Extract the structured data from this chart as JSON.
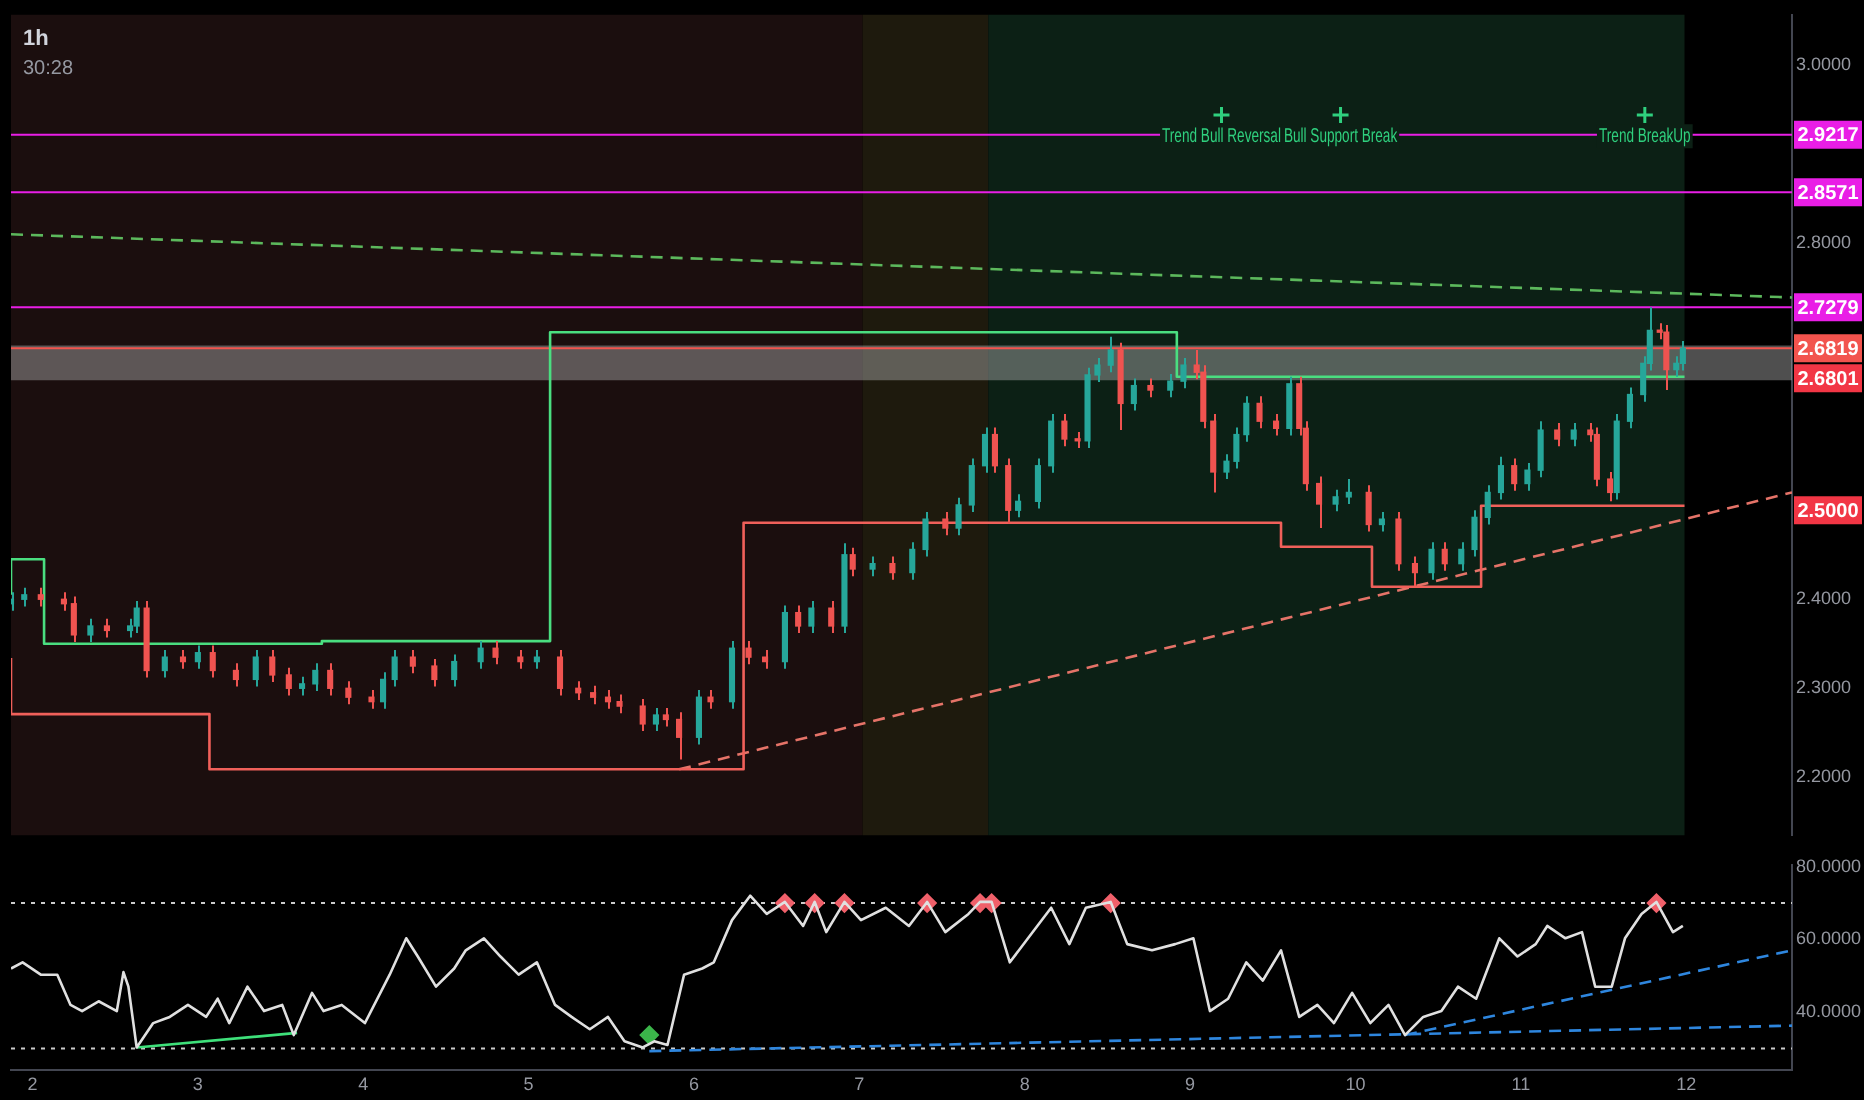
{
  "chart_data": [
    {
      "type": "candlestick",
      "title": "1h",
      "x": [
        1.87,
        1.95,
        2.05,
        2.19,
        2.25,
        2.35,
        2.45,
        2.59,
        2.63,
        2.69,
        2.8,
        2.91,
        3.0,
        3.09,
        3.23,
        3.35,
        3.45,
        3.55,
        3.63,
        3.71,
        3.8,
        3.91,
        4.05,
        4.12,
        4.19,
        4.3,
        4.43,
        4.55,
        4.71,
        4.8,
        4.95,
        5.05,
        5.19,
        5.3,
        5.39,
        5.48,
        5.55,
        5.69,
        5.77,
        5.83,
        5.91,
        6.03,
        6.1,
        6.23,
        6.33,
        6.43,
        6.55,
        6.63,
        6.71,
        6.83,
        6.91,
        6.96,
        7.08,
        7.2,
        7.32,
        7.4,
        7.52,
        7.6,
        7.68,
        7.76,
        7.82,
        7.9,
        7.96,
        8.08,
        8.16,
        8.24,
        8.32,
        8.38,
        8.44,
        8.52,
        8.58,
        8.66,
        8.76,
        8.88,
        8.96,
        9.04,
        9.08,
        9.14,
        9.22,
        9.28,
        9.34,
        9.42,
        9.52,
        9.6,
        9.66,
        9.7,
        9.78,
        9.88,
        9.96,
        10.08,
        10.16,
        10.26,
        10.36,
        10.46,
        10.54,
        10.64,
        10.72,
        10.8,
        10.88,
        10.96,
        11.04,
        11.12,
        11.22,
        11.32,
        11.42,
        11.46,
        11.54,
        11.58,
        11.66,
        11.74,
        11.78,
        11.84,
        11.88,
        11.94,
        11.98
      ],
      "ohlc": [
        [
          2.395,
          2.408,
          2.387,
          2.4
        ],
        [
          2.4,
          2.413,
          2.392,
          2.405
        ],
        [
          2.405,
          2.413,
          2.392,
          2.4
        ],
        [
          2.4,
          2.408,
          2.387,
          2.395
        ],
        [
          2.395,
          2.403,
          2.352,
          2.36
        ],
        [
          2.36,
          2.378,
          2.352,
          2.37
        ],
        [
          2.37,
          2.378,
          2.357,
          2.365
        ],
        [
          2.365,
          2.378,
          2.357,
          2.37
        ],
        [
          2.37,
          2.398,
          2.362,
          2.39
        ],
        [
          2.39,
          2.398,
          2.312,
          2.32
        ],
        [
          2.32,
          2.343,
          2.312,
          2.335
        ],
        [
          2.335,
          2.343,
          2.322,
          2.33
        ],
        [
          2.33,
          2.348,
          2.322,
          2.34
        ],
        [
          2.34,
          2.348,
          2.312,
          2.32
        ],
        [
          2.32,
          2.328,
          2.302,
          2.31
        ],
        [
          2.31,
          2.343,
          2.302,
          2.335
        ],
        [
          2.335,
          2.343,
          2.307,
          2.315
        ],
        [
          2.315,
          2.323,
          2.292,
          2.3
        ],
        [
          2.3,
          2.313,
          2.292,
          2.305
        ],
        [
          2.305,
          2.328,
          2.297,
          2.32
        ],
        [
          2.32,
          2.328,
          2.292,
          2.3
        ],
        [
          2.3,
          2.308,
          2.282,
          2.29
        ],
        [
          2.29,
          2.298,
          2.277,
          2.285
        ],
        [
          2.285,
          2.318,
          2.277,
          2.31
        ],
        [
          2.31,
          2.343,
          2.302,
          2.335
        ],
        [
          2.335,
          2.343,
          2.317,
          2.325
        ],
        [
          2.325,
          2.333,
          2.302,
          2.31
        ],
        [
          2.31,
          2.338,
          2.302,
          2.33
        ],
        [
          2.33,
          2.353,
          2.322,
          2.345
        ],
        [
          2.345,
          2.353,
          2.327,
          2.335
        ],
        [
          2.335,
          2.343,
          2.322,
          2.33
        ],
        [
          2.33,
          2.343,
          2.322,
          2.335
        ],
        [
          2.335,
          2.343,
          2.292,
          2.3
        ],
        [
          2.3,
          2.308,
          2.287,
          2.295
        ],
        [
          2.295,
          2.303,
          2.282,
          2.29
        ],
        [
          2.29,
          2.298,
          2.277,
          2.285
        ],
        [
          2.285,
          2.293,
          2.272,
          2.28
        ],
        [
          2.28,
          2.288,
          2.252,
          2.26
        ],
        [
          2.26,
          2.278,
          2.252,
          2.27
        ],
        [
          2.27,
          2.278,
          2.257,
          2.265
        ],
        [
          2.265,
          2.273,
          2.22,
          2.245
        ],
        [
          2.245,
          2.298,
          2.237,
          2.29
        ],
        [
          2.29,
          2.298,
          2.277,
          2.285
        ],
        [
          2.285,
          2.353,
          2.277,
          2.345
        ],
        [
          2.345,
          2.353,
          2.327,
          2.335
        ],
        [
          2.335,
          2.343,
          2.322,
          2.33
        ],
        [
          2.33,
          2.393,
          2.322,
          2.385
        ],
        [
          2.385,
          2.393,
          2.362,
          2.37
        ],
        [
          2.37,
          2.398,
          2.362,
          2.39
        ],
        [
          2.39,
          2.398,
          2.362,
          2.37
        ],
        [
          2.37,
          2.463,
          2.362,
          2.45
        ],
        [
          2.45,
          2.458,
          2.426,
          2.434
        ],
        [
          2.434,
          2.448,
          2.426,
          2.44
        ],
        [
          2.44,
          2.448,
          2.422,
          2.43
        ],
        [
          2.43,
          2.464,
          2.422,
          2.456
        ],
        [
          2.456,
          2.498,
          2.448,
          2.49
        ],
        [
          2.49,
          2.498,
          2.472,
          2.48
        ],
        [
          2.48,
          2.514,
          2.472,
          2.506
        ],
        [
          2.506,
          2.558,
          2.498,
          2.55
        ],
        [
          2.55,
          2.593,
          2.542,
          2.585
        ],
        [
          2.585,
          2.593,
          2.542,
          2.55
        ],
        [
          2.55,
          2.558,
          2.485,
          2.5
        ],
        [
          2.5,
          2.518,
          2.492,
          2.51
        ],
        [
          2.51,
          2.558,
          2.502,
          2.55
        ],
        [
          2.55,
          2.608,
          2.542,
          2.6
        ],
        [
          2.6,
          2.608,
          2.572,
          2.58
        ],
        [
          2.58,
          2.588,
          2.57,
          2.578
        ],
        [
          2.578,
          2.66,
          2.57,
          2.652
        ],
        [
          2.652,
          2.671,
          2.644,
          2.663
        ],
        [
          2.663,
          2.695,
          2.655,
          2.68
        ],
        [
          2.68,
          2.688,
          2.59,
          2.62
        ],
        [
          2.62,
          2.648,
          2.612,
          2.64
        ],
        [
          2.64,
          2.648,
          2.627,
          2.635
        ],
        [
          2.635,
          2.653,
          2.627,
          2.645
        ],
        [
          2.645,
          2.671,
          2.637,
          2.663
        ],
        [
          2.663,
          2.68,
          2.647,
          2.655
        ],
        [
          2.655,
          2.663,
          2.592,
          2.6
        ],
        [
          2.6,
          2.608,
          2.52,
          2.543
        ],
        [
          2.543,
          2.563,
          2.535,
          2.555
        ],
        [
          2.555,
          2.593,
          2.547,
          2.585
        ],
        [
          2.585,
          2.628,
          2.577,
          2.62
        ],
        [
          2.62,
          2.628,
          2.592,
          2.6
        ],
        [
          2.6,
          2.608,
          2.584,
          2.592
        ],
        [
          2.592,
          2.65,
          2.584,
          2.642
        ],
        [
          2.642,
          2.65,
          2.584,
          2.592
        ],
        [
          2.592,
          2.6,
          2.522,
          2.53
        ],
        [
          2.53,
          2.538,
          2.48,
          2.507
        ],
        [
          2.507,
          2.523,
          2.499,
          2.515
        ],
        [
          2.515,
          2.535,
          2.507,
          2.52
        ],
        [
          2.52,
          2.528,
          2.476,
          2.484
        ],
        [
          2.484,
          2.498,
          2.476,
          2.49
        ],
        [
          2.49,
          2.498,
          2.432,
          2.44
        ],
        [
          2.44,
          2.448,
          2.415,
          2.43
        ],
        [
          2.43,
          2.464,
          2.422,
          2.456
        ],
        [
          2.456,
          2.464,
          2.432,
          2.44
        ],
        [
          2.44,
          2.464,
          2.432,
          2.456
        ],
        [
          2.456,
          2.5,
          2.448,
          2.492
        ],
        [
          2.492,
          2.528,
          2.484,
          2.52
        ],
        [
          2.52,
          2.56,
          2.512,
          2.55
        ],
        [
          2.55,
          2.558,
          2.522,
          2.53
        ],
        [
          2.53,
          2.553,
          2.522,
          2.545
        ],
        [
          2.545,
          2.6,
          2.537,
          2.59
        ],
        [
          2.59,
          2.598,
          2.572,
          2.58
        ],
        [
          2.58,
          2.598,
          2.572,
          2.59
        ],
        [
          2.59,
          2.598,
          2.577,
          2.585
        ],
        [
          2.585,
          2.593,
          2.527,
          2.535
        ],
        [
          2.535,
          2.543,
          2.51,
          2.52
        ],
        [
          2.52,
          2.608,
          2.512,
          2.6
        ],
        [
          2.6,
          2.638,
          2.592,
          2.63
        ],
        [
          2.63,
          2.673,
          2.622,
          2.665
        ],
        [
          2.665,
          2.728,
          2.657,
          2.702
        ],
        [
          2.702,
          2.71,
          2.692,
          2.7
        ],
        [
          2.7,
          2.708,
          2.635,
          2.658
        ],
        [
          2.658,
          2.673,
          2.65,
          2.665
        ],
        [
          2.665,
          2.69,
          2.657,
          2.682
        ]
      ],
      "series": [
        {
          "type": "step",
          "color": "#4ade80",
          "x": [
            1.87,
            2.07,
            3.75,
            5.13,
            8.92,
            9.97,
            11.99
          ],
          "values": [
            2.405,
            2.445,
            2.35,
            2.353,
            2.7,
            2.65,
            2.65
          ]
        },
        {
          "type": "step",
          "color": "#f0605a",
          "x": [
            1.87,
            3.07,
            6.3,
            9.55,
            10.1,
            10.76,
            11.9,
            11.99
          ],
          "values": [
            2.334,
            2.271,
            2.209,
            2.486,
            2.459,
            2.414,
            2.505,
            2.505
          ]
        },
        {
          "type": "line",
          "color": "#5cb85c",
          "line_style": "dashed",
          "x": [
            1.87,
            12.64
          ],
          "values": [
            2.81,
            2.739
          ]
        },
        {
          "type": "line",
          "color": "#e57368",
          "line_style": "dashed",
          "x": [
            5.91,
            12.64
          ],
          "values": [
            2.209,
            2.52
          ]
        },
        {
          "type": "scatter",
          "marker": "cross",
          "color": "#2fd07e",
          "x": [
            9.19,
            9.91,
            11.75
          ],
          "values": [
            2.944,
            2.944,
            2.944
          ]
        }
      ],
      "xlim": [
        1.87,
        12.64
      ],
      "ylim": [
        2.135,
        3.0565
      ],
      "yticks": [
        {
          "value": 2.2,
          "label": "2.2000"
        },
        {
          "value": 2.3,
          "label": "2.3000"
        },
        {
          "value": 2.4,
          "label": "2.4000"
        },
        {
          "value": 2.8,
          "label": "2.8000"
        },
        {
          "value": 3.0,
          "label": "3.0000"
        }
      ],
      "tick_labels": "y",
      "ref_lines": [
        {
          "axis": "y",
          "value": 2.9217,
          "label": "2.9217",
          "color": "#e91ee6"
        },
        {
          "axis": "y",
          "value": 2.8571,
          "label": "2.8571",
          "color": "#e91ee6"
        },
        {
          "axis": "y",
          "value": 2.7279,
          "label": "2.7279",
          "color": "#e91ee6"
        },
        {
          "axis": "y",
          "value": 2.6819,
          "label": "2.6819",
          "color": "#f2544e"
        }
      ],
      "bands": [
        {
          "axis": "x",
          "from": 1.87,
          "to": 7.02,
          "color": "#1b0e0e"
        },
        {
          "axis": "x",
          "from": 7.02,
          "to": 7.78,
          "color": "#1e1a0d"
        },
        {
          "axis": "x",
          "from": 7.78,
          "to": 11.99,
          "color": "#0c2015"
        },
        {
          "axis": "y",
          "from": 2.646,
          "to": 2.685,
          "color": "#b0b0b0"
        }
      ],
      "annotations": [
        {
          "text": "Trend Bull Reversal",
          "x": 9.19,
          "y": 2.92
        },
        {
          "text": "Bull Support Break",
          "x": 9.91,
          "y": 2.92
        },
        {
          "text": "Trend BreakUp",
          "x": 11.75,
          "y": 2.92
        },
        {
          "text": "2.6801",
          "y": 2.6801
        },
        {
          "text": "2.5000",
          "y": 2.5
        },
        "30:28"
      ]
    },
    {
      "type": "line",
      "x": [
        1.87,
        1.94,
        2.05,
        2.15,
        2.23,
        2.3,
        2.4,
        2.51,
        2.55,
        2.58,
        2.63,
        2.73,
        2.83,
        2.94,
        3.05,
        3.12,
        3.19,
        3.3,
        3.4,
        3.51,
        3.58,
        3.69,
        3.76,
        3.87,
        4.01,
        4.16,
        4.26,
        4.33,
        4.44,
        4.55,
        4.62,
        4.73,
        4.83,
        4.94,
        5.05,
        5.16,
        5.26,
        5.37,
        5.48,
        5.58,
        5.69,
        5.76,
        5.84,
        5.94,
        6.05,
        6.12,
        6.23,
        6.34,
        6.44,
        6.55,
        6.66,
        6.73,
        6.8,
        6.91,
        7.01,
        7.16,
        7.3,
        7.41,
        7.52,
        7.66,
        7.73,
        7.8,
        7.91,
        8.02,
        8.16,
        8.27,
        8.37,
        8.52,
        8.62,
        8.77,
        8.91,
        9.02,
        9.12,
        9.23,
        9.34,
        9.44,
        9.55,
        9.66,
        9.77,
        9.87,
        9.98,
        10.09,
        10.2,
        10.3,
        10.41,
        10.52,
        10.62,
        10.73,
        10.87,
        10.98,
        11.09,
        11.16,
        11.27,
        11.37,
        11.45,
        11.55,
        11.63,
        11.73,
        11.82,
        11.92,
        11.98
      ],
      "series": [
        {
          "color": "#e0e0e0",
          "values": [
            52,
            53.7,
            50.3,
            50.3,
            42,
            40.3,
            43,
            40.3,
            51,
            47,
            30.3,
            37,
            38.7,
            42,
            38.7,
            43.7,
            37,
            47,
            40.3,
            42,
            33.7,
            45.3,
            40.3,
            42,
            37,
            50.3,
            60.3,
            55.3,
            47,
            52,
            57,
            60.3,
            55.3,
            50.3,
            53.7,
            42,
            38.7,
            35.3,
            38.7,
            32,
            30.3,
            32,
            31,
            50.3,
            52,
            53.7,
            65.3,
            72,
            67,
            70.3,
            63.7,
            70.3,
            62,
            70.3,
            65.3,
            68.7,
            63.7,
            70.3,
            62,
            67,
            70.3,
            70.3,
            53.7,
            60.3,
            68.7,
            58.7,
            68.7,
            70.3,
            58.7,
            57,
            58.7,
            60.3,
            40.3,
            43.7,
            53.7,
            48.7,
            57,
            38.7,
            42,
            37,
            45.3,
            37,
            42,
            33.7,
            38.7,
            40.3,
            47,
            43.7,
            60.3,
            55.3,
            58.7,
            63.7,
            60.3,
            62,
            47,
            47,
            60.3,
            67,
            70.3,
            62,
            63.7
          ]
        },
        {
          "type": "line",
          "color": "#3ee07a",
          "x": [
            2.63,
            3.6
          ],
          "values": [
            30.3,
            34.3
          ]
        },
        {
          "type": "line",
          "color": "#2e86de",
          "line_style": "dashed",
          "x": [
            5.73,
            12.64
          ],
          "values": [
            29.3,
            36.3
          ]
        },
        {
          "type": "line",
          "color": "#2e86de",
          "line_style": "dashed",
          "x": [
            10.3,
            12.64
          ],
          "values": [
            33.7,
            57
          ]
        },
        {
          "type": "scatter",
          "marker": "diamond",
          "color": "#f0606a",
          "x": [
            6.55,
            6.73,
            6.91,
            7.41,
            7.73,
            7.8,
            8.52,
            11.82
          ],
          "values": [
            70,
            70,
            70,
            70,
            70,
            70,
            70,
            70
          ]
        },
        {
          "type": "scatter",
          "marker": "diamond",
          "color": "#3bb54a",
          "x": [
            5.73
          ],
          "values": [
            33.7
          ]
        }
      ],
      "xlim": [
        1.87,
        12.64
      ],
      "ylim": [
        24,
        80.5
      ],
      "xticks": [
        2,
        3,
        4,
        5,
        6,
        7,
        8,
        9,
        10,
        11,
        12
      ],
      "yticks": [
        {
          "value": 40,
          "label": "40.0000"
        },
        {
          "value": 60,
          "label": "60.0000"
        },
        {
          "value": 80,
          "label": "80.0000"
        }
      ],
      "ref_lines": [
        {
          "axis": "y",
          "value": 70,
          "color": "#cccccc",
          "line_style": "dotted"
        },
        {
          "axis": "y",
          "value": 30,
          "color": "#cccccc",
          "line_style": "dotted"
        }
      ]
    }
  ]
}
